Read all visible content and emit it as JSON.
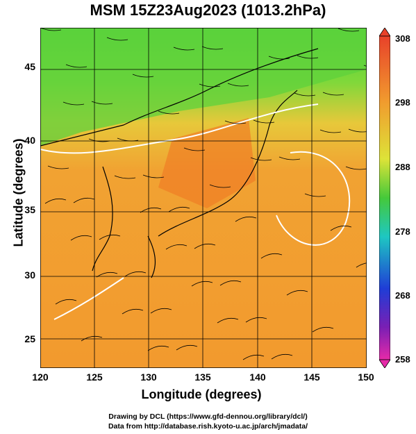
{
  "title": "MSM 15Z23Aug2023 (1013.2hPa)",
  "x_axis": {
    "label": "Longitude (degrees)",
    "ticks": [
      "120",
      "125",
      "130",
      "135",
      "140",
      "145",
      "150"
    ]
  },
  "y_axis": {
    "label": "Latitude (degrees)",
    "ticks": [
      "45",
      "40",
      "35",
      "30",
      "25"
    ]
  },
  "colorbar": {
    "ticks": [
      "308",
      "298",
      "288",
      "278",
      "268",
      "258"
    ]
  },
  "credits": [
    "Drawing by DCL (https://www.gfd-dennou.org/library/dcl/)",
    "Data from http://database.rish.kyoto-u.ac.jp/arch/jmadata/"
  ],
  "colors": {
    "warm": "#f29a2e",
    "hot": "#ef6f22",
    "mild": "#d9d938",
    "cool": "#59cc3b",
    "grid": "#000000"
  }
}
